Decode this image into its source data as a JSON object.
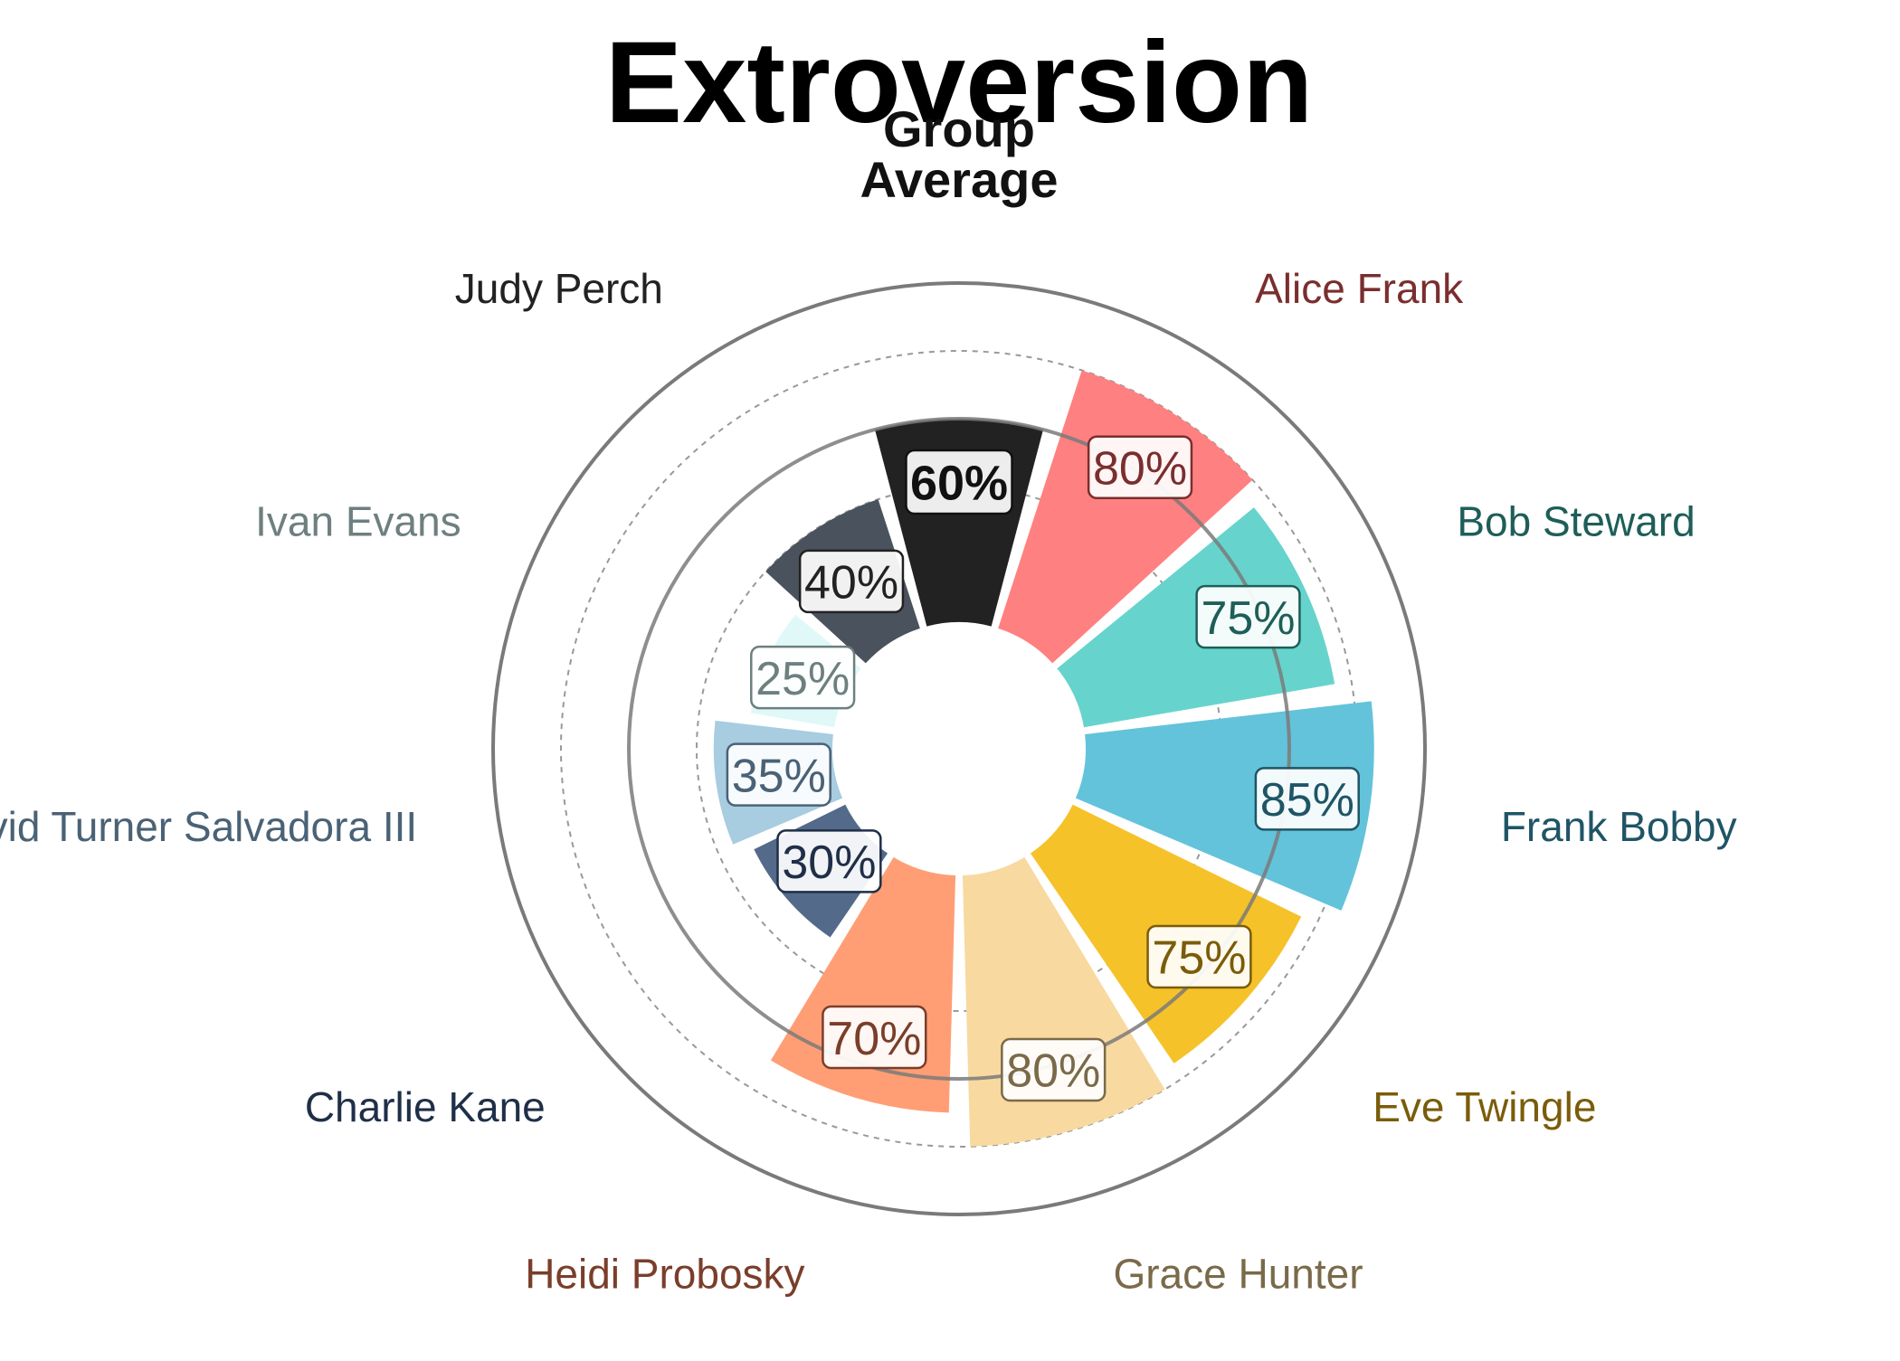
{
  "chart_data": {
    "type": "radial-bar",
    "title": "Extroversion",
    "unit": "%",
    "rlim": [
      0,
      100
    ],
    "rings": [
      60,
      100
    ],
    "dashed_rings": [
      40,
      80
    ],
    "series": [
      {
        "name": "Group Average",
        "value": 60,
        "color": "#222222",
        "label_color": "#111111",
        "bold": true
      },
      {
        "name": "Alice Frank",
        "value": 80,
        "color": "#FF8080",
        "label_color": "#7A2E2E"
      },
      {
        "name": "Bob Steward",
        "value": 75,
        "color": "#66D4CC",
        "label_color": "#1E5E58"
      },
      {
        "name": "Frank Bobby",
        "value": 85,
        "color": "#63C3DA",
        "label_color": "#1F5566"
      },
      {
        "name": "Eve Twingle",
        "value": 75,
        "color": "#F6C229",
        "label_color": "#7A5C0A"
      },
      {
        "name": "Grace Hunter",
        "value": 80,
        "color": "#F8D9A0",
        "label_color": "#7A6A4A"
      },
      {
        "name": "Heidi Probosky",
        "value": 70,
        "color": "#FF9E75",
        "label_color": "#7A3E2A"
      },
      {
        "name": "Charlie Kane",
        "value": 30,
        "color": "#536A8A",
        "label_color": "#1F2F48"
      },
      {
        "name": "David Turner Salvadora III",
        "value": 35,
        "color": "#A8CCE0",
        "label_color": "#4A6276"
      },
      {
        "name": "Ivan Evans",
        "value": 25,
        "color": "#E0F8F8",
        "label_color": "#6E7F7F"
      },
      {
        "name": "Judy Perch",
        "value": 40,
        "color": "#4A525E",
        "label_color": "#222222"
      }
    ],
    "grid": true,
    "legend": "none"
  }
}
